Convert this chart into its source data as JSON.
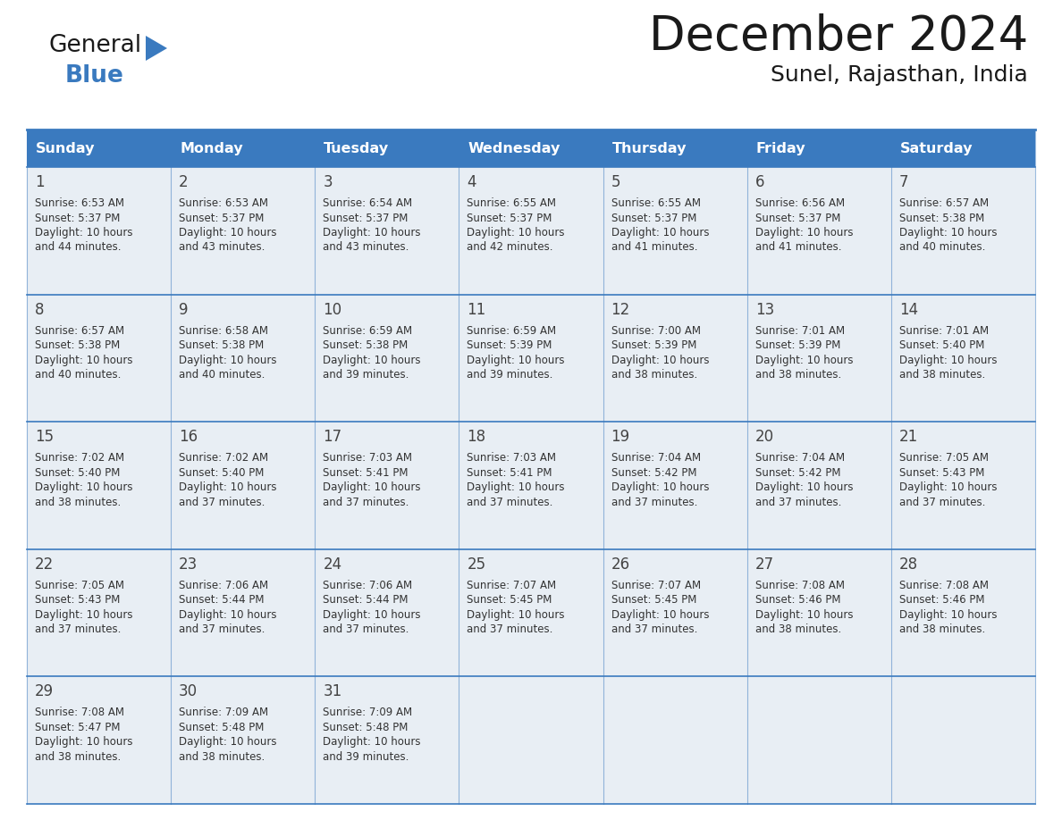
{
  "title": "December 2024",
  "subtitle": "Sunel, Rajasthan, India",
  "header_color": "#3a7abf",
  "header_text_color": "#ffffff",
  "cell_bg_color": "#e8eef4",
  "day_headers": [
    "Sunday",
    "Monday",
    "Tuesday",
    "Wednesday",
    "Thursday",
    "Friday",
    "Saturday"
  ],
  "days": [
    {
      "day": 1,
      "col": 0,
      "row": 0,
      "sunrise": "6:53 AM",
      "sunset": "5:37 PM",
      "daylight": "10 hours and 44 minutes."
    },
    {
      "day": 2,
      "col": 1,
      "row": 0,
      "sunrise": "6:53 AM",
      "sunset": "5:37 PM",
      "daylight": "10 hours and 43 minutes."
    },
    {
      "day": 3,
      "col": 2,
      "row": 0,
      "sunrise": "6:54 AM",
      "sunset": "5:37 PM",
      "daylight": "10 hours and 43 minutes."
    },
    {
      "day": 4,
      "col": 3,
      "row": 0,
      "sunrise": "6:55 AM",
      "sunset": "5:37 PM",
      "daylight": "10 hours and 42 minutes."
    },
    {
      "day": 5,
      "col": 4,
      "row": 0,
      "sunrise": "6:55 AM",
      "sunset": "5:37 PM",
      "daylight": "10 hours and 41 minutes."
    },
    {
      "day": 6,
      "col": 5,
      "row": 0,
      "sunrise": "6:56 AM",
      "sunset": "5:37 PM",
      "daylight": "10 hours and 41 minutes."
    },
    {
      "day": 7,
      "col": 6,
      "row": 0,
      "sunrise": "6:57 AM",
      "sunset": "5:38 PM",
      "daylight": "10 hours and 40 minutes."
    },
    {
      "day": 8,
      "col": 0,
      "row": 1,
      "sunrise": "6:57 AM",
      "sunset": "5:38 PM",
      "daylight": "10 hours and 40 minutes."
    },
    {
      "day": 9,
      "col": 1,
      "row": 1,
      "sunrise": "6:58 AM",
      "sunset": "5:38 PM",
      "daylight": "10 hours and 40 minutes."
    },
    {
      "day": 10,
      "col": 2,
      "row": 1,
      "sunrise": "6:59 AM",
      "sunset": "5:38 PM",
      "daylight": "10 hours and 39 minutes."
    },
    {
      "day": 11,
      "col": 3,
      "row": 1,
      "sunrise": "6:59 AM",
      "sunset": "5:39 PM",
      "daylight": "10 hours and 39 minutes."
    },
    {
      "day": 12,
      "col": 4,
      "row": 1,
      "sunrise": "7:00 AM",
      "sunset": "5:39 PM",
      "daylight": "10 hours and 38 minutes."
    },
    {
      "day": 13,
      "col": 5,
      "row": 1,
      "sunrise": "7:01 AM",
      "sunset": "5:39 PM",
      "daylight": "10 hours and 38 minutes."
    },
    {
      "day": 14,
      "col": 6,
      "row": 1,
      "sunrise": "7:01 AM",
      "sunset": "5:40 PM",
      "daylight": "10 hours and 38 minutes."
    },
    {
      "day": 15,
      "col": 0,
      "row": 2,
      "sunrise": "7:02 AM",
      "sunset": "5:40 PM",
      "daylight": "10 hours and 38 minutes."
    },
    {
      "day": 16,
      "col": 1,
      "row": 2,
      "sunrise": "7:02 AM",
      "sunset": "5:40 PM",
      "daylight": "10 hours and 37 minutes."
    },
    {
      "day": 17,
      "col": 2,
      "row": 2,
      "sunrise": "7:03 AM",
      "sunset": "5:41 PM",
      "daylight": "10 hours and 37 minutes."
    },
    {
      "day": 18,
      "col": 3,
      "row": 2,
      "sunrise": "7:03 AM",
      "sunset": "5:41 PM",
      "daylight": "10 hours and 37 minutes."
    },
    {
      "day": 19,
      "col": 4,
      "row": 2,
      "sunrise": "7:04 AM",
      "sunset": "5:42 PM",
      "daylight": "10 hours and 37 minutes."
    },
    {
      "day": 20,
      "col": 5,
      "row": 2,
      "sunrise": "7:04 AM",
      "sunset": "5:42 PM",
      "daylight": "10 hours and 37 minutes."
    },
    {
      "day": 21,
      "col": 6,
      "row": 2,
      "sunrise": "7:05 AM",
      "sunset": "5:43 PM",
      "daylight": "10 hours and 37 minutes."
    },
    {
      "day": 22,
      "col": 0,
      "row": 3,
      "sunrise": "7:05 AM",
      "sunset": "5:43 PM",
      "daylight": "10 hours and 37 minutes."
    },
    {
      "day": 23,
      "col": 1,
      "row": 3,
      "sunrise": "7:06 AM",
      "sunset": "5:44 PM",
      "daylight": "10 hours and 37 minutes."
    },
    {
      "day": 24,
      "col": 2,
      "row": 3,
      "sunrise": "7:06 AM",
      "sunset": "5:44 PM",
      "daylight": "10 hours and 37 minutes."
    },
    {
      "day": 25,
      "col": 3,
      "row": 3,
      "sunrise": "7:07 AM",
      "sunset": "5:45 PM",
      "daylight": "10 hours and 37 minutes."
    },
    {
      "day": 26,
      "col": 4,
      "row": 3,
      "sunrise": "7:07 AM",
      "sunset": "5:45 PM",
      "daylight": "10 hours and 37 minutes."
    },
    {
      "day": 27,
      "col": 5,
      "row": 3,
      "sunrise": "7:08 AM",
      "sunset": "5:46 PM",
      "daylight": "10 hours and 38 minutes."
    },
    {
      "day": 28,
      "col": 6,
      "row": 3,
      "sunrise": "7:08 AM",
      "sunset": "5:46 PM",
      "daylight": "10 hours and 38 minutes."
    },
    {
      "day": 29,
      "col": 0,
      "row": 4,
      "sunrise": "7:08 AM",
      "sunset": "5:47 PM",
      "daylight": "10 hours and 38 minutes."
    },
    {
      "day": 30,
      "col": 1,
      "row": 4,
      "sunrise": "7:09 AM",
      "sunset": "5:48 PM",
      "daylight": "10 hours and 38 minutes."
    },
    {
      "day": 31,
      "col": 2,
      "row": 4,
      "sunrise": "7:09 AM",
      "sunset": "5:48 PM",
      "daylight": "10 hours and 39 minutes."
    }
  ],
  "num_rows": 5,
  "num_cols": 7,
  "line_color": "#3a7abf",
  "text_color": "#333333",
  "day_number_color": "#444444"
}
